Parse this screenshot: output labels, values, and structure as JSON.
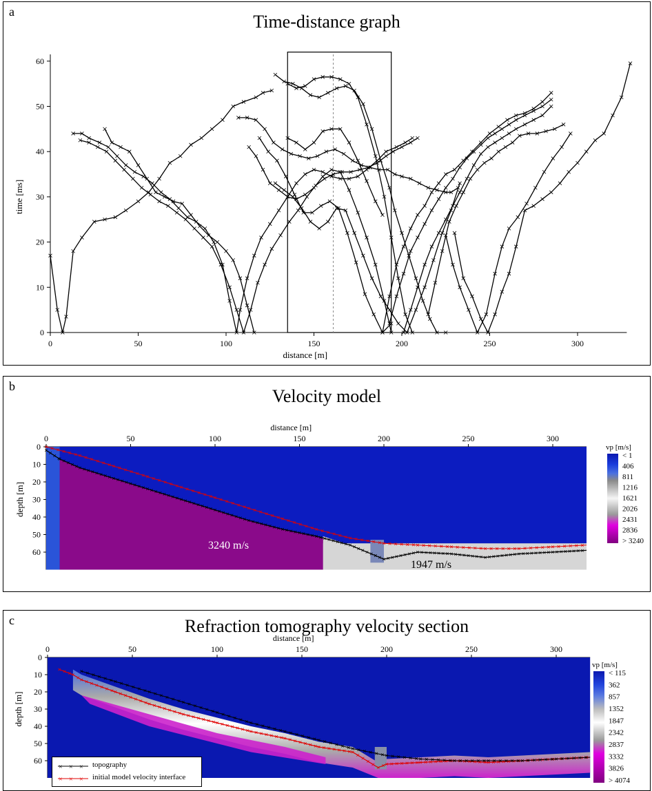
{
  "panels": {
    "a": {
      "letter": "a",
      "title": "Time-distance graph"
    },
    "b": {
      "letter": "b",
      "title": "Velocity model"
    },
    "c": {
      "letter": "c",
      "title": "Refraction tomography velocity section"
    }
  },
  "chart_data": [
    {
      "type": "line",
      "title": "Time-distance graph",
      "xlabel": "distance [m]",
      "ylabel": "time [ms]",
      "xlim": [
        0,
        325
      ],
      "ylim": [
        0,
        60
      ],
      "xticks": [
        0,
        50,
        100,
        150,
        200,
        250,
        300
      ],
      "yticks": [
        0,
        10,
        20,
        30,
        40,
        50,
        60
      ],
      "highlight_box": {
        "x": [
          135,
          194
        ],
        "y": [
          0,
          62
        ]
      },
      "dashed_line_x": 161,
      "series": [
        {
          "x": [
            0,
            4,
            7,
            9,
            13,
            18,
            25,
            31,
            37,
            43,
            50,
            56,
            62,
            68,
            74,
            80,
            86,
            92,
            98,
            104,
            110,
            117,
            121,
            126
          ],
          "values": [
            17,
            5,
            0,
            3.5,
            18,
            21,
            24.5,
            25,
            25.5,
            27,
            29,
            31,
            34,
            37.5,
            39,
            41.5,
            43,
            45,
            47,
            50,
            51,
            52,
            53,
            53.5
          ]
        },
        {
          "x": [
            13,
            18,
            22,
            28,
            33,
            38,
            43,
            48,
            53,
            58,
            63,
            68,
            73,
            78,
            83,
            88,
            93,
            98,
            102,
            106,
            108,
            112,
            116,
            120,
            125,
            130,
            135,
            140,
            145,
            150,
            155,
            160,
            165,
            170,
            175,
            180,
            186,
            191,
            197,
            202,
            206
          ],
          "values": [
            44,
            44,
            43,
            42,
            41,
            39,
            37,
            35.5,
            34.5,
            33,
            31,
            29.5,
            27.5,
            25.5,
            24.5,
            23,
            20,
            15,
            7,
            0,
            5,
            12,
            17,
            21,
            24,
            27,
            30,
            33,
            35,
            36,
            35.5,
            34.5,
            34,
            34,
            34.5,
            36,
            38,
            40,
            41,
            42,
            43
          ]
        },
        {
          "x": [
            17,
            22,
            27,
            32,
            37,
            42,
            47,
            52,
            57,
            62,
            67,
            72,
            77,
            82,
            87,
            92,
            97,
            102,
            106,
            110,
            114,
            118,
            122,
            126,
            131,
            136,
            141,
            146,
            151,
            156,
            161,
            166,
            171,
            176,
            181,
            186,
            191,
            195,
            200,
            205,
            209
          ],
          "values": [
            42.5,
            42,
            41,
            40,
            38,
            36,
            34,
            32,
            30.5,
            29,
            28,
            26.5,
            25,
            23,
            21,
            19,
            15,
            10,
            5,
            0,
            5,
            11,
            15,
            18.5,
            21.5,
            24.5,
            27,
            30,
            32.5,
            34,
            35,
            35.5,
            35.5,
            36,
            36.5,
            37.5,
            39,
            40,
            41,
            42,
            43
          ]
        },
        {
          "x": [
            31,
            35,
            40,
            45,
            50,
            55,
            60,
            65,
            70,
            75,
            80,
            85,
            90,
            95,
            100,
            104,
            108,
            112,
            116
          ],
          "values": [
            45,
            42,
            41,
            40,
            37,
            34,
            31,
            30,
            29,
            28.5,
            26,
            23.5,
            21.5,
            20,
            18,
            16,
            12,
            6,
            0
          ]
        },
        {
          "x": [
            107,
            112,
            117,
            122,
            127,
            132,
            137,
            142,
            147,
            152,
            157,
            162,
            167,
            172,
            177,
            182,
            187,
            192,
            196,
            200,
            205,
            210,
            215,
            220,
            225,
            228,
            232
          ],
          "values": [
            47.5,
            47.5,
            47,
            45,
            42,
            40.5,
            39.5,
            39,
            38.5,
            39,
            40,
            40.5,
            39.5,
            38,
            37,
            36.5,
            36,
            36,
            35,
            34.5,
            34,
            33,
            32,
            31.5,
            31,
            31,
            32
          ]
        },
        {
          "x": [
            128,
            133,
            138,
            143,
            148,
            153,
            158,
            163,
            168,
            173,
            178,
            183,
            188,
            193,
            196,
            200,
            204,
            208,
            212,
            216,
            220,
            225
          ],
          "values": [
            57,
            55.5,
            55,
            54,
            52.5,
            52,
            53,
            54,
            54.5,
            53.5,
            50.5,
            45,
            38,
            32,
            27,
            22,
            17,
            12,
            7,
            3,
            0,
            0
          ]
        },
        {
          "x": [
            135,
            140,
            145,
            150,
            155,
            160,
            165,
            170,
            175,
            180,
            185,
            190,
            194,
            198,
            202,
            206
          ],
          "values": [
            55,
            54,
            54.5,
            56,
            56.5,
            56.5,
            56,
            55,
            52,
            46,
            39,
            30,
            21,
            12,
            4,
            0
          ]
        },
        {
          "x": [
            113,
            117,
            121,
            125,
            130,
            135,
            140,
            145,
            150,
            155,
            160,
            165,
            170,
            175,
            180,
            185,
            190,
            194
          ],
          "values": [
            41,
            39,
            36,
            33,
            31.5,
            30,
            29.5,
            30.5,
            32,
            34.5,
            36,
            35.5,
            31.5,
            26.5,
            21,
            15,
            7,
            0
          ]
        },
        {
          "x": [
            119,
            124,
            129,
            134,
            139,
            144,
            149,
            154,
            159,
            164,
            169,
            174,
            179,
            184,
            189,
            194
          ],
          "values": [
            43,
            40,
            38,
            34.5,
            30.5,
            26.5,
            26.5,
            28,
            29,
            27.5,
            22,
            15.5,
            8.5,
            4,
            0,
            2
          ]
        },
        {
          "x": [
            135,
            140,
            145,
            150,
            155,
            160,
            165,
            170,
            175,
            180,
            185,
            189
          ],
          "values": [
            43,
            42,
            40.5,
            42,
            44.5,
            45,
            45,
            42,
            38,
            33.5,
            29,
            26
          ]
        },
        {
          "x": [
            128,
            133,
            138,
            143,
            148,
            153,
            158,
            163,
            168,
            173,
            178,
            183,
            188,
            193,
            198,
            203,
            208,
            213,
            218,
            223,
            228,
            233
          ],
          "values": [
            33,
            31.5,
            30,
            27.5,
            24.5,
            23,
            24.5,
            27.5,
            27,
            22,
            17,
            12,
            8,
            5,
            2,
            0,
            5,
            10,
            16,
            22,
            27,
            33
          ]
        },
        {
          "x": [
            189,
            193,
            197,
            201,
            205,
            209,
            213,
            217,
            221,
            225,
            230,
            235,
            240,
            245,
            250,
            255,
            260,
            265,
            270,
            275,
            280,
            285
          ],
          "values": [
            0,
            8,
            15,
            19,
            23,
            26,
            28,
            31,
            33,
            35,
            36,
            38,
            40,
            42,
            44,
            45.5,
            47,
            48,
            48.5,
            49.5,
            51,
            53
          ]
        },
        {
          "x": [
            193,
            197,
            201,
            205,
            209,
            213,
            217,
            221,
            225,
            229,
            233,
            237,
            241,
            245,
            249,
            253,
            257,
            261,
            265,
            270,
            275,
            280,
            285
          ],
          "values": [
            2,
            8,
            13,
            18,
            21,
            24,
            27,
            29.5,
            32,
            34,
            36.5,
            38.5,
            40,
            41.5,
            43,
            44,
            45,
            46,
            47,
            48,
            49,
            50,
            51.5
          ]
        },
        {
          "x": [
            201,
            205,
            209,
            213,
            217,
            221,
            225,
            229,
            233,
            237,
            241,
            245,
            249,
            253,
            257,
            261,
            265,
            270,
            275,
            280,
            285
          ],
          "values": [
            0,
            5,
            10,
            15,
            19,
            22,
            25,
            28,
            31,
            34,
            37,
            39.5,
            41,
            42,
            43,
            44,
            45,
            46,
            47,
            48,
            50
          ]
        },
        {
          "x": [
            215,
            219,
            223,
            227,
            231,
            235,
            239,
            243,
            247,
            251,
            255,
            259,
            263,
            267,
            272,
            277,
            282,
            287,
            292
          ],
          "values": [
            4,
            11,
            18,
            24.5,
            28,
            31,
            34,
            36,
            37.5,
            38.5,
            40,
            41,
            42,
            43.5,
            44,
            44,
            44.5,
            45,
            46
          ]
        },
        {
          "x": [
            225,
            229,
            233,
            238,
            243,
            248,
            253,
            257,
            261,
            266,
            271,
            276,
            281,
            286,
            291,
            296
          ],
          "values": [
            21.5,
            15,
            10,
            5,
            0,
            4,
            13,
            19,
            23,
            25.5,
            28.5,
            32,
            35.5,
            38.5,
            41,
            44
          ]
        },
        {
          "x": [
            230,
            235,
            240,
            245,
            249,
            253,
            257,
            261,
            265,
            270,
            275,
            280,
            285,
            290,
            295,
            300,
            305,
            310,
            315,
            320,
            325,
            330
          ],
          "values": [
            22,
            12,
            8,
            3,
            0,
            4,
            9,
            13,
            19,
            27,
            28,
            29.5,
            31,
            33,
            35.5,
            37.5,
            40,
            42.5,
            44,
            48,
            52,
            59.5
          ]
        }
      ]
    },
    {
      "type": "heatmap",
      "title": "Velocity model",
      "xlabel": "distance [m]",
      "ylabel": "depth [m]",
      "xlim": [
        0,
        320
      ],
      "ylim": [
        0,
        70
      ],
      "xticks": [
        0,
        50,
        100,
        150,
        200,
        250,
        300
      ],
      "yticks": [
        0,
        10,
        20,
        30,
        40,
        50,
        60
      ],
      "colorbar_title": "vp [m/s]",
      "colorbar_labels": [
        "< 1",
        "406",
        "811",
        "1216",
        "1621",
        "2026",
        "2431",
        "2836",
        "> 3240"
      ],
      "annotations": [
        "3240 m/s",
        "1947 m/s"
      ],
      "regions": [
        {
          "name": "3240 m/s",
          "x": [
            8,
            164
          ],
          "velocity": 3240
        },
        {
          "name": "1947 m/s",
          "x": [
            164,
            320
          ],
          "velocity": 1947
        }
      ],
      "interface": {
        "x": [
          0,
          8,
          20,
          40,
          60,
          80,
          100,
          120,
          140,
          160,
          180,
          195,
          200,
          220,
          240,
          260,
          280,
          300,
          320
        ],
        "depth": [
          2,
          7,
          12,
          18,
          24,
          30,
          36,
          42,
          47,
          51,
          56,
          62,
          64,
          60,
          61,
          63,
          61,
          60,
          59
        ]
      },
      "topography": {
        "x": [
          0,
          20,
          40,
          60,
          80,
          100,
          120,
          140,
          160,
          180,
          200,
          220,
          240,
          260,
          280,
          300,
          320
        ],
        "depth": [
          0,
          5,
          11,
          17,
          23,
          29,
          35,
          41,
          47,
          52,
          55,
          56,
          57,
          58,
          58,
          57,
          56
        ]
      }
    },
    {
      "type": "heatmap",
      "title": "Refraction tomography velocity section",
      "xlabel": "distance [m]",
      "ylabel": "depth [m]",
      "xlim": [
        0,
        320
      ],
      "ylim": [
        0,
        70
      ],
      "xticks": [
        0,
        50,
        100,
        150,
        200,
        250,
        300
      ],
      "yticks": [
        0,
        10,
        20,
        30,
        40,
        50,
        60
      ],
      "colorbar_title": "vp [m/s]",
      "colorbar_labels": [
        "< 115",
        "362",
        "857",
        "1352",
        "1847",
        "2342",
        "2837",
        "3332",
        "3826",
        "> 4074"
      ],
      "legend": [
        "topography",
        "initial model velocity interface"
      ],
      "topography": {
        "x": [
          20,
          40,
          60,
          80,
          100,
          120,
          140,
          160,
          180,
          200,
          220,
          240,
          260,
          280,
          300,
          320
        ],
        "depth": [
          8,
          14,
          20,
          26,
          32,
          38,
          43,
          48,
          53,
          57,
          59,
          60,
          60,
          60,
          59,
          58
        ]
      },
      "interface": {
        "x": [
          7,
          15,
          20,
          40,
          60,
          80,
          100,
          120,
          140,
          160,
          180,
          195,
          200,
          220,
          240,
          260,
          280,
          300,
          320
        ],
        "depth": [
          7,
          10,
          13,
          20,
          27,
          33,
          38,
          43,
          47,
          52,
          55,
          64,
          62,
          61,
          60,
          61,
          60,
          59,
          58
        ]
      }
    }
  ]
}
